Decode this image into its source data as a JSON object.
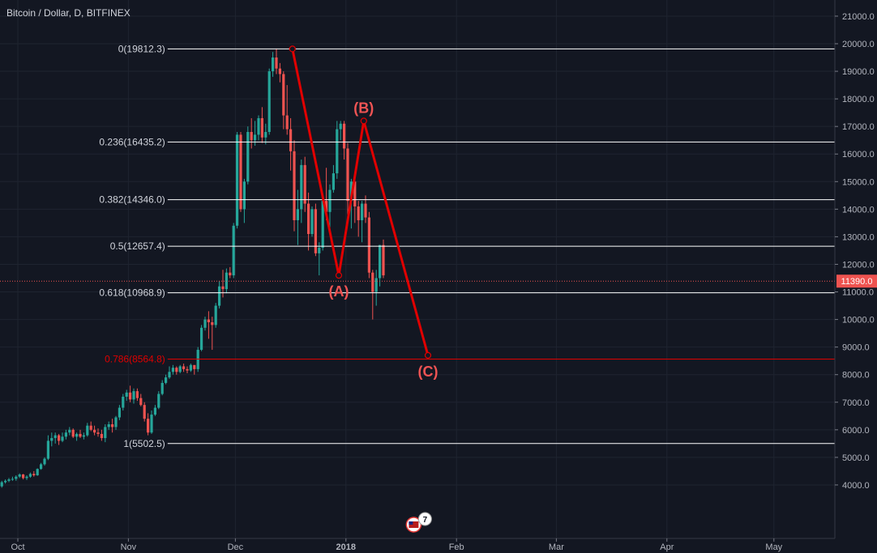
{
  "title": "Bitcoin / Dollar, D, BITFINEX",
  "chart_data": {
    "type": "candlestick",
    "symbol": "BTCUSD",
    "interval": "D",
    "exchange": "BITFINEX",
    "y_range": [
      3000,
      21000
    ],
    "y_ticks": [
      4000,
      5000,
      6000,
      7000,
      8000,
      9000,
      10000,
      11000,
      12000,
      13000,
      14000,
      15000,
      16000,
      17000,
      18000,
      19000,
      20000,
      21000
    ],
    "y_tick_labels": [
      "4000.0",
      "5000.0",
      "6000.0",
      "7000.0",
      "8000.0",
      "9000.0",
      "10000.0",
      "11000.0",
      "12000.0",
      "13000.0",
      "14000.0",
      "15000.0",
      "16000.0",
      "17000.0",
      "18000.0",
      "19000.0",
      "20000.0",
      "21000.0"
    ],
    "x_range": [
      "2017-09-26",
      "2018-05-26"
    ],
    "x_ticks": [
      {
        "date": "2017-10-01",
        "label": "Oct"
      },
      {
        "date": "2017-11-01",
        "label": "Nov"
      },
      {
        "date": "2017-12-01",
        "label": "Dec"
      },
      {
        "date": "2018-01-01",
        "label": "2018"
      },
      {
        "date": "2018-02-01",
        "label": "Feb"
      },
      {
        "date": "2018-03-01",
        "label": "Mar"
      },
      {
        "date": "2018-04-01",
        "label": "Apr"
      },
      {
        "date": "2018-05-01",
        "label": "May"
      }
    ],
    "candles_start_date": "2017-09-26",
    "candles": [
      [
        3950,
        4150,
        3900,
        4100
      ],
      [
        4100,
        4200,
        4050,
        4150
      ],
      [
        4150,
        4250,
        4100,
        4200
      ],
      [
        4200,
        4300,
        4150,
        4220
      ],
      [
        4220,
        4350,
        4150,
        4300
      ],
      [
        4300,
        4420,
        4250,
        4380
      ],
      [
        4380,
        4400,
        4200,
        4250
      ],
      [
        4250,
        4350,
        4180,
        4300
      ],
      [
        4300,
        4450,
        4260,
        4400
      ],
      [
        4400,
        4500,
        4300,
        4350
      ],
      [
        4350,
        4600,
        4330,
        4580
      ],
      [
        4580,
        4800,
        4550,
        4750
      ],
      [
        4750,
        5000,
        4700,
        4950
      ],
      [
        4950,
        5800,
        4900,
        5600
      ],
      [
        5600,
        5900,
        5400,
        5700
      ],
      [
        5700,
        5900,
        5500,
        5800
      ],
      [
        5800,
        5850,
        5450,
        5600
      ],
      [
        5600,
        5900,
        5550,
        5750
      ],
      [
        5750,
        6000,
        5650,
        5900
      ],
      [
        5900,
        6100,
        5800,
        6000
      ],
      [
        6000,
        6050,
        5700,
        5750
      ],
      [
        5750,
        5900,
        5600,
        5850
      ],
      [
        5850,
        6000,
        5700,
        5750
      ],
      [
        5750,
        5900,
        5650,
        5800
      ],
      [
        5800,
        6250,
        5750,
        6150
      ],
      [
        6150,
        6300,
        5950,
        6000
      ],
      [
        6000,
        6150,
        5800,
        5900
      ],
      [
        5900,
        6050,
        5750,
        5850
      ],
      [
        5850,
        6000,
        5600,
        5700
      ],
      [
        5700,
        6200,
        5550,
        6100
      ],
      [
        6100,
        6300,
        6000,
        6200
      ],
      [
        6200,
        6400,
        5900,
        6100
      ],
      [
        6100,
        6500,
        6000,
        6450
      ],
      [
        6450,
        6900,
        6350,
        6800
      ],
      [
        6800,
        7300,
        6700,
        7200
      ],
      [
        7200,
        7450,
        7050,
        7350
      ],
      [
        7350,
        7600,
        7000,
        7100
      ],
      [
        7100,
        7500,
        6950,
        7400
      ],
      [
        7400,
        7500,
        7050,
        7150
      ],
      [
        7150,
        7300,
        6850,
        6900
      ],
      [
        6900,
        7000,
        6300,
        6400
      ],
      [
        6400,
        6600,
        5800,
        5900
      ],
      [
        5900,
        6700,
        5850,
        6550
      ],
      [
        6550,
        6900,
        6500,
        6800
      ],
      [
        6800,
        7400,
        6750,
        7300
      ],
      [
        7300,
        7800,
        7250,
        7700
      ],
      [
        7700,
        8000,
        7650,
        7900
      ],
      [
        7900,
        8300,
        7850,
        8100
      ],
      [
        8100,
        8350,
        8000,
        8250
      ],
      [
        8250,
        8300,
        8000,
        8100
      ],
      [
        8100,
        8350,
        8050,
        8300
      ],
      [
        8300,
        8400,
        8100,
        8200
      ],
      [
        8200,
        8300,
        8050,
        8150
      ],
      [
        8150,
        8400,
        8100,
        8350
      ],
      [
        8350,
        8300,
        8000,
        8200
      ],
      [
        8200,
        9000,
        8100,
        8900
      ],
      [
        8900,
        9800,
        8850,
        9700
      ],
      [
        9700,
        10100,
        9600,
        10000
      ],
      [
        10000,
        10300,
        9300,
        9900
      ],
      [
        9900,
        10100,
        8900,
        9800
      ],
      [
        9800,
        10600,
        9700,
        10500
      ],
      [
        10500,
        11400,
        10400,
        11200
      ],
      [
        11200,
        11800,
        10800,
        11100
      ],
      [
        11100,
        11850,
        10950,
        11700
      ],
      [
        11700,
        11900,
        11500,
        11600
      ],
      [
        11600,
        13500,
        11500,
        13400
      ],
      [
        13400,
        16800,
        13300,
        16700
      ],
      [
        16700,
        16800,
        13900,
        14000
      ],
      [
        14000,
        15100,
        13500,
        15000
      ],
      [
        15000,
        17000,
        14900,
        16800
      ],
      [
        16800,
        17300,
        16200,
        16500
      ],
      [
        16500,
        17200,
        16300,
        16700
      ],
      [
        16700,
        17400,
        16500,
        17300
      ],
      [
        17300,
        17700,
        16400,
        16600
      ],
      [
        16600,
        17100,
        16350,
        16800
      ],
      [
        16800,
        19100,
        16700,
        19000
      ],
      [
        19000,
        19700,
        18800,
        19500
      ],
      [
        19500,
        19812,
        18900,
        19100
      ],
      [
        19100,
        19300,
        18600,
        18900
      ],
      [
        18900,
        19000,
        16900,
        17400
      ],
      [
        17400,
        18500,
        16700,
        16900
      ],
      [
        16900,
        17300,
        15400,
        16100
      ],
      [
        16100,
        16500,
        13200,
        13600
      ],
      [
        13600,
        14700,
        12700,
        14000
      ],
      [
        14000,
        15800,
        13500,
        15600
      ],
      [
        15600,
        15900,
        13900,
        14200
      ],
      [
        14200,
        14600,
        12500,
        13100
      ],
      [
        13100,
        14100,
        13000,
        14000
      ],
      [
        14000,
        14200,
        12300,
        12400
      ],
      [
        12400,
        12800,
        11600,
        12600
      ],
      [
        12600,
        14500,
        12500,
        14300
      ],
      [
        14300,
        15500,
        13600,
        13900
      ],
      [
        13900,
        14900,
        13200,
        14700
      ],
      [
        14700,
        15600,
        14600,
        15300
      ],
      [
        15300,
        17200,
        15100,
        16900
      ],
      [
        16900,
        17200,
        16500,
        17100
      ],
      [
        17100,
        17200,
        15800,
        16200
      ],
      [
        16200,
        16400,
        13800,
        14300
      ],
      [
        14300,
        15100,
        13300,
        15000
      ],
      [
        15000,
        15200,
        13500,
        14100
      ],
      [
        14100,
        14300,
        13000,
        13600
      ],
      [
        13600,
        14300,
        12800,
        14200
      ],
      [
        14200,
        14500,
        13500,
        13700
      ],
      [
        13700,
        13900,
        11500,
        11700
      ],
      [
        11700,
        11800,
        10000,
        11000
      ],
      [
        11000,
        11800,
        10500,
        11500
      ],
      [
        11500,
        12700,
        11200,
        12700
      ],
      [
        12700,
        12900,
        11500,
        11600
      ]
    ],
    "fibonacci_levels": [
      {
        "ratio": "0",
        "price": 19812.3,
        "label": "0(19812.3)"
      },
      {
        "ratio": "0.236",
        "price": 16435.2,
        "label": "0.236(16435.2)"
      },
      {
        "ratio": "0.382",
        "price": 14346.0,
        "label": "0.382(14346.0)"
      },
      {
        "ratio": "0.5",
        "price": 12657.4,
        "label": "0.5(12657.4)"
      },
      {
        "ratio": "0.618",
        "price": 10968.9,
        "label": "0.618(10968.9)"
      },
      {
        "ratio": "0.786",
        "price": 8564.8,
        "label": "0.786(8564.8)",
        "highlight": true
      },
      {
        "ratio": "1",
        "price": 5502.5,
        "label": "1(5502.5)"
      }
    ],
    "wave_path": [
      {
        "date": "2017-12-17",
        "price": 19812.3,
        "label": ""
      },
      {
        "date": "2017-12-30",
        "price": 11600,
        "label": "(A)"
      },
      {
        "date": "2018-01-06",
        "price": 17200,
        "label": "(B)"
      },
      {
        "date": "2018-01-24",
        "price": 8700,
        "label": "(C)"
      }
    ],
    "current_price": 11390.0,
    "current_price_label": "11390.0",
    "badge_count": "7"
  },
  "colors": {
    "background": "#131722",
    "axis_text": "#b2b5be",
    "grid": "#1f2430",
    "up": "#26a69a",
    "down": "#ef5350",
    "fib_line": "#ffffff",
    "fib_highlight": "#e00000",
    "wave": "#e00000",
    "wave_label": "#f05454",
    "price_badge": "#ef5350"
  }
}
